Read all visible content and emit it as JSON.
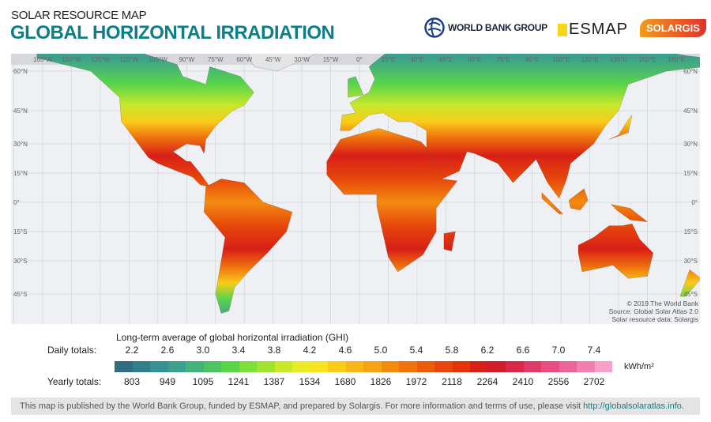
{
  "header": {
    "supertitle": "SOLAR RESOURCE MAP",
    "title": "GLOBAL HORIZONTAL IRRADIATION"
  },
  "logos": {
    "world_bank": "WORLD BANK GROUP",
    "esmap": "ESMAP",
    "solargis": "SOLARGIS"
  },
  "map": {
    "longitude_labels": [
      "165°W",
      "150°W",
      "135°W",
      "120°W",
      "105°W",
      "90°W",
      "75°W",
      "60°W",
      "45°W",
      "30°W",
      "15°W",
      "0°",
      "15°E",
      "30°E",
      "45°E",
      "60°E",
      "75°E",
      "90°E",
      "105°E",
      "120°E",
      "135°E",
      "150°E",
      "165°E"
    ],
    "latitude_labels": [
      "60°N",
      "45°N",
      "30°N",
      "15°N",
      "0°",
      "15°S",
      "30°S",
      "45°S"
    ],
    "credits": [
      "© 2019 The World Bank",
      "Source: Global Solar Atlas 2.0",
      "Solar resource data: Solargis"
    ]
  },
  "legend": {
    "title": "Long-term average of global horizontal irradiation (GHI)",
    "daily_label": "Daily totals:",
    "daily": [
      "2.2",
      "2.6",
      "3.0",
      "3.4",
      "3.8",
      "4.2",
      "4.6",
      "5.0",
      "5.4",
      "5.8",
      "6.2",
      "6.6",
      "7.0",
      "7.4"
    ],
    "yearly_label": "Yearly totals:",
    "yearly": [
      "803",
      "949",
      "1095",
      "1241",
      "1387",
      "1534",
      "1680",
      "1826",
      "1972",
      "2118",
      "2264",
      "2410",
      "2556",
      "2702"
    ],
    "unit": "kWh/m²",
    "colors": [
      "#2e6e80",
      "#317e8a",
      "#379091",
      "#3ca08c",
      "#43b37a",
      "#4cc466",
      "#5ad54a",
      "#7ede3a",
      "#a2e32f",
      "#c8e82b",
      "#e8ec25",
      "#f8e31e",
      "#f9cc18",
      "#f8b717",
      "#f5a214",
      "#f38b10",
      "#ef740d",
      "#eb5d0b",
      "#e6470a",
      "#e2330b",
      "#d81f17",
      "#d01c2b",
      "#d8294b",
      "#e03b67",
      "#e64d82",
      "#ec6499",
      "#f27fb2",
      "#f7a1c9"
    ]
  },
  "footer": {
    "text": "This map is published by the World Bank Group, funded by ESMAP, and prepared by Solargis. For more information and terms of use, please visit ",
    "link": "http://globalsolaratlas.info",
    "end": "."
  }
}
